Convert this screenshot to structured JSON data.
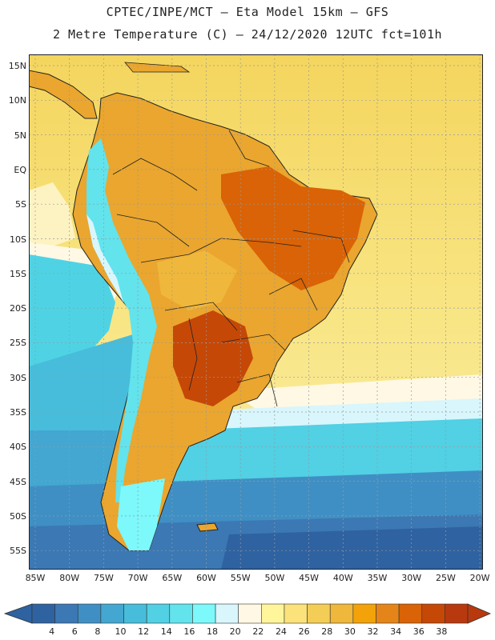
{
  "header": {
    "line1": "CPTEC/INPE/MCT –  Eta Model 15km – GFS",
    "line2": "2 Metre Temperature (C) – 24/12/2020 12UTC fct=101h"
  },
  "map": {
    "lat_ticks": [
      "15N",
      "10N",
      "5N",
      "EQ",
      "5S",
      "10S",
      "15S",
      "20S",
      "25S",
      "30S",
      "35S",
      "40S",
      "45S",
      "50S",
      "55S"
    ],
    "lon_ticks": [
      "85W",
      "80W",
      "75W",
      "70W",
      "65W",
      "60W",
      "55W",
      "50W",
      "45W",
      "40W",
      "35W",
      "30W",
      "25W",
      "20W"
    ],
    "ocean_color": "#f6dd6e",
    "land_color": "#eaa62e"
  },
  "colorbar": {
    "labels": [
      "4",
      "6",
      "8",
      "10",
      "12",
      "14",
      "16",
      "18",
      "20",
      "22",
      "24",
      "26",
      "28",
      "30",
      "32",
      "34",
      "36",
      "38"
    ],
    "colors": [
      "#2f62a0",
      "#3b78b4",
      "#3f8fc4",
      "#43a7d1",
      "#47bddb",
      "#52d0e4",
      "#63e3ec",
      "#7df8fb",
      "#d8f6fc",
      "#fff8e4",
      "#fff59a",
      "#fbe27a",
      "#f3cd56",
      "#efb73b",
      "#f3a20a",
      "#e58519",
      "#d96306",
      "#c54807",
      "#b8390e"
    ]
  }
}
